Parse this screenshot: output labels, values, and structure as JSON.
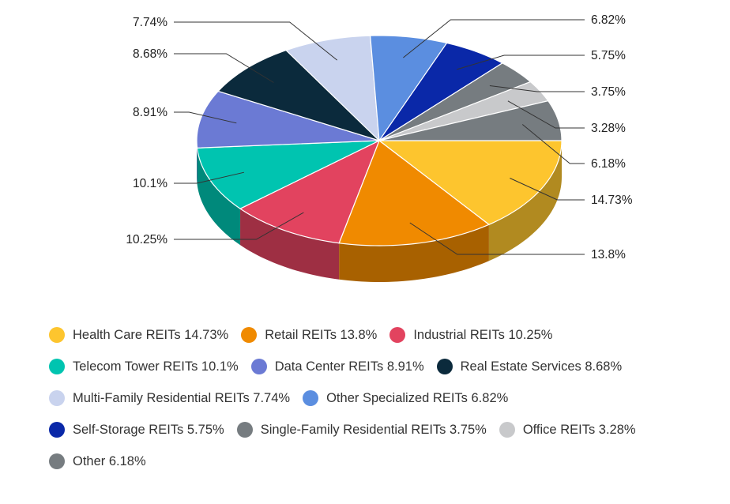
{
  "chart_data": {
    "type": "pie",
    "style": "3d",
    "title": "",
    "slices": [
      {
        "name": "Health Care REITs",
        "value": 14.73,
        "label": "14.73%",
        "legend": "Health Care REITs 14.73%",
        "color": "#fdc52e"
      },
      {
        "name": "Retail REITs",
        "value": 13.8,
        "label": "13.8%",
        "legend": "Retail REITs 13.8%",
        "color": "#f08a00"
      },
      {
        "name": "Industrial REITs",
        "value": 10.25,
        "label": "10.25%",
        "legend": "Industrial REITs 10.25%",
        "color": "#e2435f"
      },
      {
        "name": "Telecom Tower REITs",
        "value": 10.1,
        "label": "10.1%",
        "legend": "Telecom Tower REITs 10.1%",
        "color": "#00c4b0"
      },
      {
        "name": "Data Center REITs",
        "value": 8.91,
        "label": "8.91%",
        "legend": "Data Center REITs 8.91%",
        "color": "#6b7ad4"
      },
      {
        "name": "Real Estate Services",
        "value": 8.68,
        "label": "8.68%",
        "legend": "Real Estate Services 8.68%",
        "color": "#0b2a3c"
      },
      {
        "name": "Multi-Family Residential REITs",
        "value": 7.74,
        "label": "7.74%",
        "legend": "Multi-Family Residential REITs 7.74%",
        "color": "#c9d3ee"
      },
      {
        "name": "Other Specialized REITs",
        "value": 6.82,
        "label": "6.82%",
        "legend": "Other Specialized REITs 6.82%",
        "color": "#5b8ee0"
      },
      {
        "name": "Self-Storage REITs",
        "value": 5.75,
        "label": "5.75%",
        "legend": "Self-Storage REITs 5.75%",
        "color": "#0a28a8"
      },
      {
        "name": "Single-Family Residential REITs",
        "value": 3.75,
        "label": "3.75%",
        "legend": "Single-Family Residential REITs 3.75%",
        "color": "#767c80"
      },
      {
        "name": "Office REITs",
        "value": 3.28,
        "label": "3.28%",
        "legend": "Office REITs 3.28%",
        "color": "#c8c9cb"
      },
      {
        "name": "Other",
        "value": 6.18,
        "label": "6.18%",
        "legend": "Other 6.18%",
        "color": "#767c80"
      }
    ],
    "legend_position": "bottom"
  }
}
